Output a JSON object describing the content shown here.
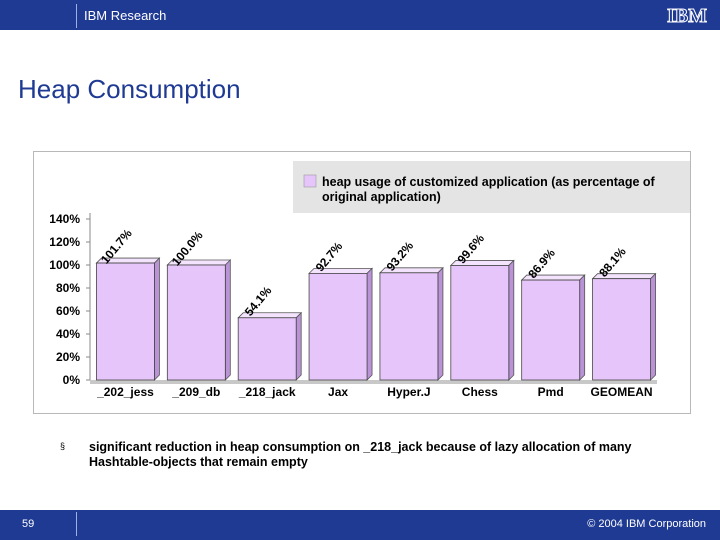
{
  "header": {
    "org": "IBM Research",
    "logo_text": "IBM"
  },
  "slide": {
    "title": "Heap Consumption"
  },
  "chart_data": {
    "type": "bar",
    "categories": [
      "_202_jess",
      "_209_db",
      "_218_jack",
      "Jax",
      "Hyper.J",
      "Chess",
      "Pmd",
      "GEOMEAN"
    ],
    "series": [
      {
        "name": "heap usage of customized application (as percentage of original application)",
        "values": [
          101.7,
          100.0,
          54.1,
          92.7,
          93.2,
          99.6,
          86.9,
          88.1
        ],
        "labels": [
          "101.7%",
          "100.0%",
          "54.1%",
          "92.7%",
          "93.2%",
          "99.6%",
          "86.9%",
          "88.1%"
        ],
        "color": "#e6c6fa"
      }
    ],
    "ylim": [
      0,
      140
    ],
    "yticks": [
      0,
      20,
      40,
      60,
      80,
      100,
      120,
      140
    ],
    "ytick_labels": [
      "0%",
      "20%",
      "40%",
      "60%",
      "80%",
      "100%",
      "120%",
      "140%"
    ],
    "legend": {
      "line1": "heap usage of customized application (as percentage of",
      "line2": "original application)",
      "placement": "top-right"
    },
    "grid": false
  },
  "bullet": {
    "marker": "§",
    "text": "significant reduction in heap consumption on _218_jack because of lazy allocation of many Hashtable-objects that remain empty"
  },
  "footer": {
    "page": "59",
    "copyright": "© 2004 IBM Corporation"
  }
}
